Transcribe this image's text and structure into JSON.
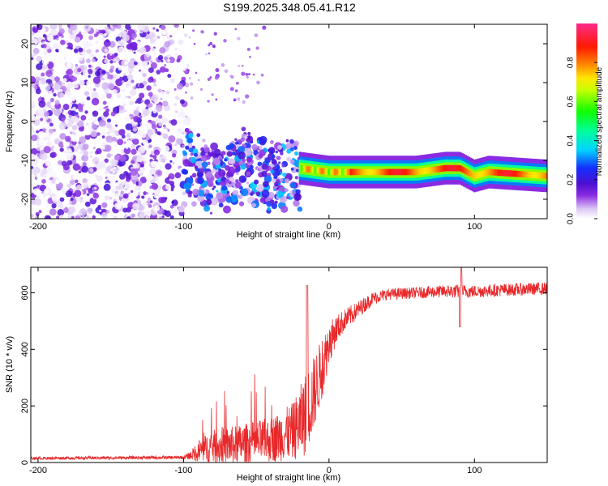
{
  "title": "S199.2025.348.05.41.R12",
  "colors": {
    "snr_line": "#e8282a",
    "axis": "#000000"
  },
  "chart_data": [
    {
      "type": "heatmap",
      "name": "spectrogram",
      "xlabel": "Height of straight line (km)",
      "ylabel": "Frequency (Hz)",
      "xlim": [
        -205,
        150
      ],
      "ylim": [
        -25,
        25
      ],
      "xticks": [
        -200,
        -100,
        0,
        100
      ],
      "yticks": [
        -20,
        -10,
        0,
        10,
        20
      ],
      "xtick_labels": [
        "-200",
        "-100",
        "0",
        "100"
      ],
      "ytick_labels": [
        "-20",
        "-10",
        "0",
        "10",
        "20"
      ],
      "colorbar": {
        "label": "Normalized spectral amplitude",
        "range": [
          0,
          1
        ],
        "ticks": [
          0.0,
          0.2,
          0.4,
          0.6,
          0.8
        ],
        "tick_labels": [
          "0.0",
          "0.2",
          "0.4",
          "0.6",
          "0.8"
        ],
        "colormap": "rainbow (white-violet-blue-cyan-green-yellow-orange-red-magenta)"
      },
      "features": [
        {
          "region": "noise",
          "x_range": [
            -205,
            -95
          ],
          "f_range": [
            -25,
            25
          ],
          "amplitude": [
            0.0,
            0.15
          ]
        },
        {
          "region": "transition",
          "x_range": [
            -100,
            -20
          ],
          "f_range": [
            -25,
            -8
          ],
          "amplitude": [
            0.05,
            0.35
          ]
        },
        {
          "region": "tone",
          "x_range": [
            -20,
            150
          ],
          "f_center": -13,
          "amplitude": [
            0.5,
            1.0
          ]
        }
      ],
      "tone_track": {
        "x": [
          -20,
          0,
          20,
          60,
          80,
          90,
          100,
          110,
          150
        ],
        "f": [
          -12,
          -13,
          -13,
          -13,
          -12,
          -12,
          -14,
          -13,
          -14
        ]
      }
    },
    {
      "type": "line",
      "name": "snr",
      "xlabel": "Height of straight line (km)",
      "ylabel": "SNR (10 * v/v)",
      "xlim": [
        -205,
        150
      ],
      "ylim": [
        0,
        690
      ],
      "xticks": [
        -200,
        -100,
        0,
        100
      ],
      "yticks": [
        0,
        200,
        400,
        600
      ],
      "xtick_labels": [
        "-200",
        "-100",
        "0",
        "100"
      ],
      "ytick_labels": [
        "0",
        "200",
        "400",
        "600"
      ],
      "envelope": {
        "x": [
          -205,
          -100,
          -95,
          -90,
          -80,
          -60,
          -40,
          -25,
          -20,
          -15,
          -10,
          -5,
          0,
          5,
          10,
          20,
          30,
          40,
          60,
          80,
          90,
          100,
          120,
          150
        ],
        "baseline": [
          15,
          18,
          25,
          40,
          55,
          65,
          80,
          110,
          140,
          180,
          250,
          330,
          420,
          470,
          500,
          540,
          580,
          595,
          600,
          605,
          605,
          605,
          610,
          615
        ],
        "spread": [
          10,
          12,
          30,
          80,
          120,
          140,
          160,
          200,
          260,
          300,
          260,
          220,
          150,
          100,
          80,
          60,
          45,
          40,
          40,
          45,
          50,
          45,
          45,
          45
        ]
      }
    }
  ]
}
